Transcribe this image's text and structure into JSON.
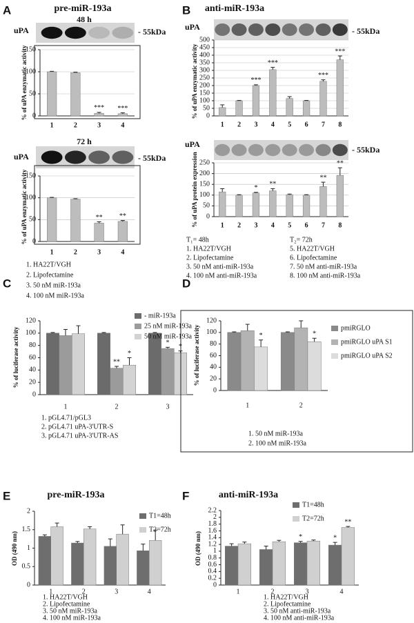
{
  "chart_data": [
    {
      "type": "bar",
      "panel": "A",
      "title": "pre-miR-193a",
      "blot": {
        "label": "uPA",
        "size": "- 55kDa",
        "time": "48 h"
      },
      "ylabel": "% of uPA enzymatic activity",
      "categories": [
        "1",
        "2",
        "3",
        "4"
      ],
      "series": [
        {
          "color": "#bdbdbd",
          "values": [
            100,
            98,
            6,
            5
          ],
          "errors": [
            1,
            1,
            2,
            2
          ],
          "stars": [
            null,
            null,
            "***",
            "***"
          ]
        }
      ],
      "ylim": [
        0,
        150
      ],
      "yticks": [
        0,
        50,
        100,
        150
      ],
      "grid": true
    },
    {
      "type": "bar",
      "blot": {
        "label": "uPA",
        "size": "- 55kDa",
        "time": "72 h"
      },
      "ylabel": "% of uPA enzymatic activity",
      "categories": [
        "1",
        "2",
        "3",
        "4"
      ],
      "series": [
        {
          "color": "#bdbdbd",
          "values": [
            100,
            97,
            42,
            46
          ],
          "errors": [
            1,
            1,
            3,
            2
          ],
          "stars": [
            null,
            null,
            "**",
            "**"
          ]
        }
      ],
      "ylim": [
        0,
        150
      ],
      "yticks": [
        0,
        50,
        100,
        150
      ],
      "grid": true,
      "notes": [
        "1. HA22T/VGH",
        "2. Lipofectamine",
        "3. 50 nM miR-193a",
        "4. 100 nM miR-193a"
      ]
    },
    {
      "type": "bar",
      "panel": "B",
      "title": "anti-miR-193a",
      "blot": {
        "label": "uPA",
        "size": "- 55kDa"
      },
      "ylabel": "% of uPA enzymatic activity",
      "categories": [
        "1",
        "2",
        "3",
        "4",
        "5",
        "6",
        "7",
        "8"
      ],
      "series": [
        {
          "color": "#bdbdbd",
          "values": [
            55,
            100,
            200,
            305,
            115,
            100,
            228,
            370
          ],
          "errors": [
            18,
            2,
            5,
            15,
            12,
            2,
            10,
            25
          ],
          "stars": [
            null,
            null,
            "***",
            "***",
            null,
            null,
            "***",
            "***"
          ]
        }
      ],
      "ylim": [
        0,
        500
      ],
      "yticks": [
        0,
        50,
        100,
        150,
        200,
        250,
        300,
        350,
        400,
        450,
        500
      ],
      "grid": true
    },
    {
      "type": "bar",
      "blot": {
        "label": "uPA",
        "size": "- 55kDa"
      },
      "ylabel": "% of uPA protein expression",
      "categories": [
        "1",
        "2",
        "3",
        "4",
        "5",
        "6",
        "7",
        "8"
      ],
      "series": [
        {
          "color": "#bdbdbd",
          "values": [
            115,
            100,
            110,
            120,
            102,
            100,
            140,
            192
          ],
          "errors": [
            15,
            2,
            3,
            10,
            3,
            2,
            20,
            35
          ],
          "stars": [
            null,
            null,
            "*",
            "**",
            null,
            null,
            "**",
            "**"
          ]
        }
      ],
      "ylim": [
        0,
        250
      ],
      "yticks": [
        0,
        50,
        100,
        150,
        200,
        250
      ],
      "grid": true,
      "notes": [
        "T₁= 48h",
        "1. HA22T/VGH",
        "2. Lipofectamine",
        "3. 50 nM anti-miR-193a",
        "4. 100 nM anti-miR-193a",
        "T₂= 72h",
        "5. HA22T/VGH",
        "6. Lipofectamine",
        "7. 50 nM anti-miR-193a",
        "8. 100 nM anti-miR-193a"
      ]
    },
    {
      "type": "bar",
      "panel": "C",
      "ylabel": "% of luciferase activity",
      "categories": [
        "1",
        "2",
        "3"
      ],
      "series": [
        {
          "name": "- miR-193a",
          "color": "#6b6b6b",
          "values": [
            100,
            100,
            100
          ],
          "errors": [
            1,
            1,
            1
          ]
        },
        {
          "name": "25 nM miR-193a",
          "color": "#9b9b9b",
          "values": [
            96,
            43,
            75
          ],
          "errors": [
            10,
            3,
            2
          ],
          "stars": [
            null,
            "**",
            "*"
          ]
        },
        {
          "name": "50 nM miR-193a",
          "color": "#d3d3d3",
          "values": [
            99,
            48,
            68
          ],
          "errors": [
            13,
            12,
            3
          ],
          "stars": [
            null,
            "*",
            "*"
          ]
        }
      ],
      "ylim": [
        0,
        120
      ],
      "yticks": [
        0,
        20,
        40,
        60,
        80,
        100,
        120
      ],
      "grid": false,
      "notes": [
        "1. pGL4.71/pGL3",
        "2. pGL4.71 uPA-3'UTR-S",
        "3. pGL4.71 uPA-3'UTR-AS"
      ]
    },
    {
      "type": "bar",
      "panel": "D",
      "ylabel": "% of luciferase activity",
      "categories": [
        "1",
        "2"
      ],
      "series": [
        {
          "name": "pmiRGLO",
          "color": "#8a8a8a",
          "values": [
            100,
            100
          ],
          "errors": [
            1,
            1
          ]
        },
        {
          "name": "pmiRGLO uPA S1",
          "color": "#b3b3b3",
          "values": [
            103,
            108
          ],
          "errors": [
            11,
            12
          ]
        },
        {
          "name": "pmiRGLO uPA S2",
          "color": "#dcdcdc",
          "values": [
            75,
            84
          ],
          "errors": [
            12,
            6
          ],
          "stars": [
            "*",
            "*"
          ]
        }
      ],
      "ylim": [
        0,
        120
      ],
      "yticks": [
        0,
        20,
        40,
        60,
        80,
        100,
        120
      ],
      "grid": false,
      "notes": [
        "1. 50 nM miR-193a",
        "2. 100 nM miR-193a"
      ]
    },
    {
      "type": "bar",
      "panel": "E",
      "title": "pre-miR-193a",
      "ylabel": "OD (490 nm)",
      "categories": [
        "1",
        "2",
        "3",
        "4"
      ],
      "series": [
        {
          "name": "T1=48h",
          "color": "#6e6e6e",
          "values": [
            1.32,
            1.14,
            1.05,
            0.93
          ],
          "errors": [
            0.04,
            0.04,
            0.2,
            0.18
          ]
        },
        {
          "name": "T2=72h",
          "color": "#d0d0d0",
          "values": [
            1.58,
            1.52,
            1.38,
            1.21
          ],
          "errors": [
            0.1,
            0.06,
            0.25,
            0.28
          ]
        }
      ],
      "ylim": [
        0,
        2
      ],
      "yticks": [
        0,
        0.5,
        1,
        1.5,
        2
      ],
      "grid": false,
      "notes": [
        "1. HA22T/VGH",
        "2. Lipofectamine",
        "3. 50 nM miR-193a",
        "4. 100 nM miR-193a"
      ]
    },
    {
      "type": "bar",
      "panel": "F",
      "title": "anti-miR-193a",
      "ylabel": "OD (490 nm)",
      "categories": [
        "1",
        "2",
        "3",
        "4"
      ],
      "series": [
        {
          "name": "T1=48h",
          "color": "#6e6e6e",
          "values": [
            1.15,
            1.05,
            1.25,
            1.18
          ],
          "errors": [
            0.07,
            0.1,
            0.04,
            0.08
          ],
          "stars": [
            null,
            null,
            "*",
            "*"
          ]
        },
        {
          "name": "T2=72h",
          "color": "#d0d0d0",
          "values": [
            1.22,
            1.28,
            1.3,
            1.7
          ],
          "errors": [
            0.05,
            0.04,
            0.03,
            0.03
          ],
          "stars": [
            null,
            null,
            null,
            "**"
          ]
        }
      ],
      "ylim": [
        0,
        2.2
      ],
      "yticks": [
        0,
        0.2,
        0.4,
        0.6,
        0.8,
        1,
        1.2,
        1.4,
        1.6,
        1.8,
        2,
        2.2
      ],
      "grid": false,
      "notes": [
        "1. HA22T/VGH",
        "2. Lipofectamine",
        "3. 50 nM anti-miR-193a",
        "4. 100 nM anti-miR-193a"
      ]
    }
  ]
}
